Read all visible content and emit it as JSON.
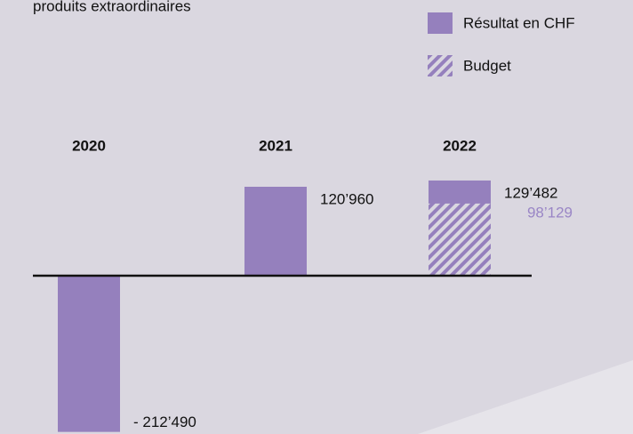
{
  "chart_data": {
    "type": "bar",
    "title": "produits extraordinaires",
    "categories": [
      "2020",
      "2021",
      "2022"
    ],
    "series": [
      {
        "name": "Résultat en CHF",
        "color": "#9580bd",
        "values": [
          -212490,
          120960,
          129482
        ],
        "value_labels": [
          "- 212’490",
          "120’960",
          "129’482"
        ]
      },
      {
        "name": "Budget",
        "color": "#9580bd",
        "pattern": "hatch",
        "values": [
          null,
          null,
          98129
        ],
        "value_labels": [
          null,
          null,
          "98’129"
        ],
        "label_color": "#9a86c6"
      }
    ],
    "ylim": [
      -215000,
      135000
    ],
    "legend": "top-right"
  }
}
